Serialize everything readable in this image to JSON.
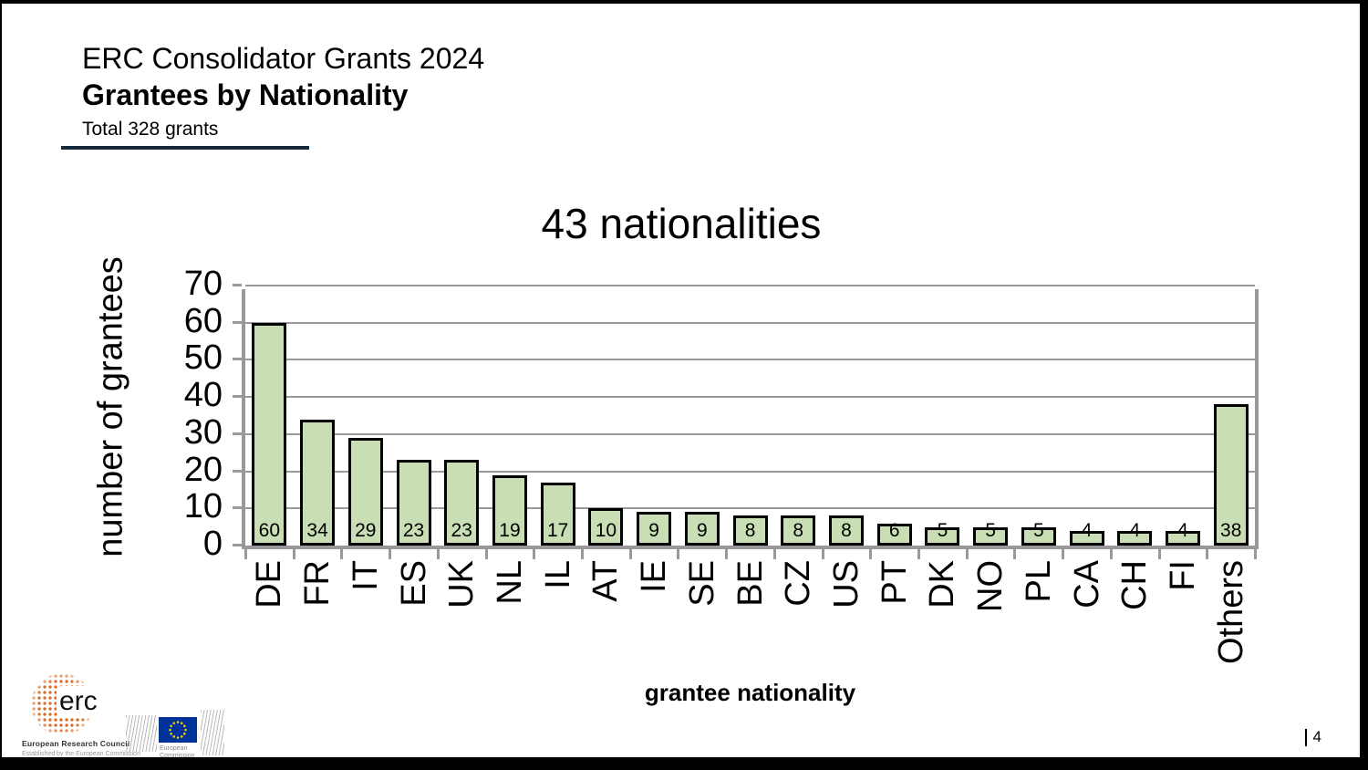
{
  "header": {
    "line1": "ERC Consolidator Grants 2024",
    "line2": "Grantees by Nationality",
    "line3": "Total 328 grants"
  },
  "chart_data": {
    "type": "bar",
    "title": "43 nationalities",
    "xlabel": "grantee nationality",
    "ylabel": "number of grantees",
    "categories": [
      "DE",
      "FR",
      "IT",
      "ES",
      "UK",
      "NL",
      "IL",
      "AT",
      "IE",
      "SE",
      "BE",
      "CZ",
      "US",
      "PT",
      "DK",
      "NO",
      "PL",
      "CA",
      "CH",
      "FI",
      "Others"
    ],
    "values": [
      60,
      34,
      29,
      23,
      23,
      19,
      17,
      10,
      9,
      9,
      8,
      8,
      8,
      6,
      5,
      5,
      5,
      4,
      4,
      4,
      38
    ],
    "data_labels": true,
    "ylim": [
      0,
      70
    ],
    "ytick_step": 10,
    "grid": true,
    "legend": false,
    "bar_fill": "#c9deb4",
    "bar_border": "#000000",
    "grid_color": "#999999"
  },
  "footer": {
    "erc_logo": {
      "word": "erc",
      "caption": "European Research Council",
      "subcaption": "Established by the European Commission"
    },
    "ec_logo": {
      "caption_line1": "European",
      "caption_line2": "Commission"
    },
    "page_number": "4"
  }
}
